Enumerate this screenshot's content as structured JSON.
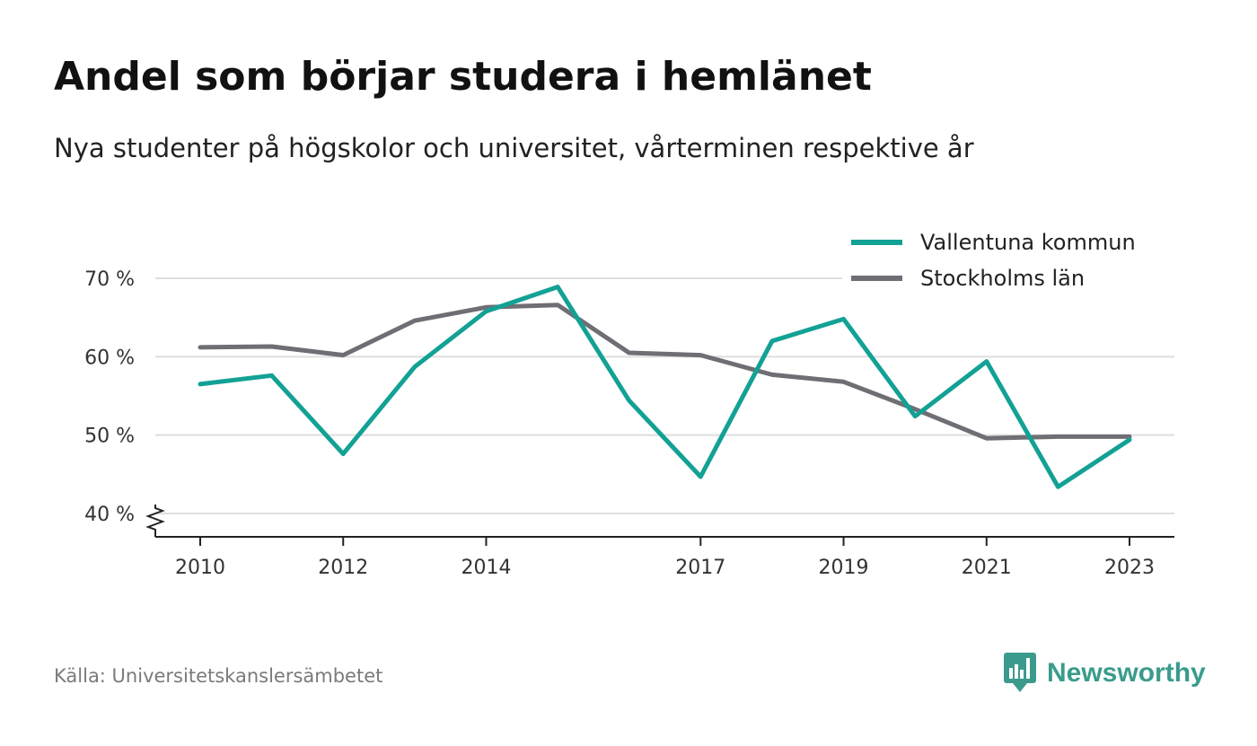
{
  "header": {
    "title": "Andel som börjar studera i hemlänet",
    "subtitle": "Nya studenter på högskolor och universitet, vårterminen respektive år"
  },
  "footer": {
    "source": "Källa: Universitetskanslersämbetet",
    "brand": "Newsworthy",
    "brand_icon": "bar-chart-speech-bubble-icon",
    "brand_color": "#3a9b8c"
  },
  "chart_data": {
    "type": "line",
    "title": "Andel som börjar studera i hemlänet",
    "subtitle": "Nya studenter på högskolor och universitet, vårterminen respektive år",
    "x": [
      2010,
      2011,
      2012,
      2013,
      2014,
      2015,
      2016,
      2017,
      2018,
      2019,
      2020,
      2021,
      2022,
      2023
    ],
    "x_tick_labels": [
      "2010",
      "2012",
      "2014",
      "2017",
      "2019",
      "2021",
      "2023"
    ],
    "y_ticks": [
      40,
      50,
      60,
      70
    ],
    "y_tick_labels": [
      "40 %",
      "50 %",
      "60 %",
      "70 %"
    ],
    "ylim": [
      37,
      70
    ],
    "y_axis_broken": true,
    "grid": true,
    "legend_position": "top-right",
    "series": [
      {
        "name": "Vallentuna kommun",
        "color": "#13a195",
        "values": [
          56.5,
          57.6,
          47.6,
          58.7,
          65.8,
          68.9,
          54.4,
          44.7,
          62.0,
          64.8,
          52.4,
          59.4,
          43.4,
          49.4
        ]
      },
      {
        "name": "Stockholms län",
        "color": "#6f6e75",
        "values": [
          61.2,
          61.3,
          60.2,
          64.6,
          66.3,
          66.6,
          60.5,
          60.2,
          57.7,
          56.8,
          53.3,
          49.6,
          49.8,
          49.8
        ]
      }
    ]
  }
}
